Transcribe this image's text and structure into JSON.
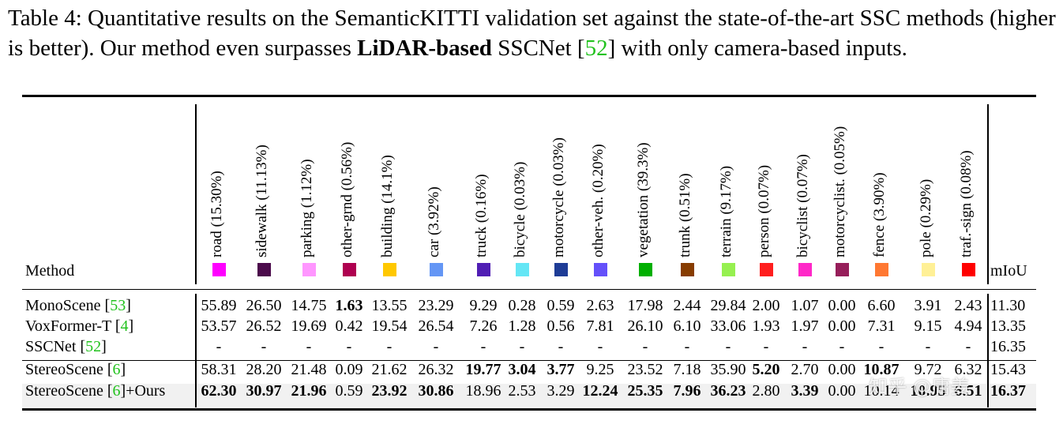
{
  "caption": {
    "part1": "Table 4: Quantitative results on the SemanticKITTI validation set against the state-of-the-art SSC methods (higher is better). Our method even surpasses ",
    "bold": "LiDAR-based",
    "part2": " SSCNet [",
    "ref": "52",
    "part3": "] with only camera-based inputs."
  },
  "table": {
    "method_header": "Method",
    "miou_header": "mIoU",
    "classes": [
      {
        "label": "road (15.30%)",
        "color": "#ff00ff"
      },
      {
        "label": "sidewalk (11.13%)",
        "color": "#4b0a4b"
      },
      {
        "label": "parking (1.12%)",
        "color": "#ff96ff"
      },
      {
        "label": "other-grnd (0.56%)",
        "color": "#af0050"
      },
      {
        "label": "building (14.1%)",
        "color": "#ffc800"
      },
      {
        "label": "car (3.92%)",
        "color": "#6496f5"
      },
      {
        "label": "truck (0.16%)",
        "color": "#501eb4"
      },
      {
        "label": "bicycle (0.03%)",
        "color": "#64e6f5"
      },
      {
        "label": "motorcycle (0.03%)",
        "color": "#1e3c96"
      },
      {
        "label": "other-veh. (0.20%)",
        "color": "#6450fa"
      },
      {
        "label": "vegetation (39.3%)",
        "color": "#00af00"
      },
      {
        "label": "trunk (0.51%)",
        "color": "#873c00"
      },
      {
        "label": "terrain (9.17%)",
        "color": "#96f050"
      },
      {
        "label": "person (0.07%)",
        "color": "#ff1e1e"
      },
      {
        "label": "bicyclist (0.07%)",
        "color": "#ff28c8"
      },
      {
        "label": "motorcyclist. (0.05%)",
        "color": "#961e5a"
      },
      {
        "label": "fence (3.90%)",
        "color": "#ff7832"
      },
      {
        "label": "pole (0.29%)",
        "color": "#fff096"
      },
      {
        "label": "traf.-sign (0.08%)",
        "color": "#ff0000"
      }
    ],
    "rows": [
      {
        "name": "MonoScene [",
        "ref": "53",
        "tail": "]",
        "values": [
          "55.89",
          "26.50",
          "14.75",
          "1.63",
          "13.55",
          "23.29",
          "9.29",
          "0.28",
          "0.59",
          "2.63",
          "17.98",
          "2.44",
          "29.84",
          "2.00",
          "1.07",
          "0.00",
          "6.60",
          "3.91",
          "2.43"
        ],
        "bold": [
          3
        ],
        "miou": "11.30",
        "miou_bold": false
      },
      {
        "name": "VoxFormer-T  [",
        "ref": "4",
        "tail": "]",
        "values": [
          "53.57",
          "26.52",
          "19.69",
          "0.42",
          "19.54",
          "26.54",
          "7.26",
          "1.28",
          "0.56",
          "7.81",
          "26.10",
          "6.10",
          "33.06",
          "1.93",
          "1.97",
          "0.00",
          "7.31",
          "9.15",
          "4.94"
        ],
        "bold": [],
        "miou": "13.35",
        "miou_bold": false
      },
      {
        "name": "SSCNet [",
        "ref": "52",
        "tail": "]",
        "values": [
          "-",
          "-",
          "-",
          "-",
          "-",
          "-",
          "-",
          "-",
          "-",
          "-",
          "-",
          "-",
          "-",
          "-",
          "-",
          "-",
          "-",
          "-",
          "-"
        ],
        "bold": [],
        "miou": "16.35",
        "miou_bold": false
      },
      {
        "name": "StereoScene  [",
        "ref": "6",
        "tail": "]",
        "values": [
          "58.31",
          "28.20",
          "21.48",
          "0.09",
          "21.62",
          "26.32",
          "19.77",
          "3.04",
          "3.77",
          "9.25",
          "23.52",
          "7.18",
          "35.90",
          "5.20",
          "2.70",
          "0.00",
          "10.87",
          "9.72",
          "6.32"
        ],
        "bold": [
          6,
          7,
          8,
          13,
          16
        ],
        "miou": "15.43",
        "miou_bold": false
      },
      {
        "name": "StereoScene [",
        "ref": "6",
        "tail": "]+Ours",
        "values": [
          "62.30",
          "30.97",
          "21.96",
          "0.59",
          "23.92",
          "30.86",
          "18.96",
          "2.53",
          "3.29",
          "12.24",
          "25.35",
          "7.96",
          "36.23",
          "2.80",
          "3.39",
          "0.00",
          "10.14",
          "10.95",
          "6.51"
        ],
        "bold": [
          0,
          1,
          2,
          4,
          5,
          9,
          10,
          11,
          12,
          14,
          17,
          18
        ],
        "miou": "16.37",
        "miou_bold": true
      }
    ]
  },
  "watermark": "知乎 @庸姜"
}
